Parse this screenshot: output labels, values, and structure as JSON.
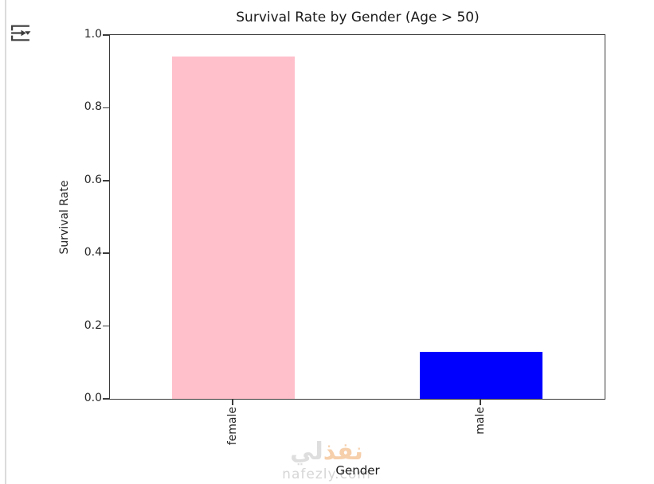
{
  "chart_data": {
    "type": "bar",
    "title": "Survival Rate by Gender (Age > 50)",
    "xlabel": "Gender",
    "ylabel": "Survival Rate",
    "categories": [
      "female",
      "male"
    ],
    "values": [
      0.94,
      0.13
    ],
    "bar_colors": [
      "#ffc0cb",
      "#0000ff"
    ],
    "ylim": [
      0,
      1.0
    ],
    "yticks": [
      "0.0",
      "0.2",
      "0.4",
      "0.6",
      "0.8",
      "1.0"
    ],
    "xtick_rotation": 90,
    "grid": false,
    "legend": false,
    "spine_color": "#3a3a3a"
  },
  "watermark": {
    "arabic_orange": "نفذ",
    "arabic_gray": "لي",
    "domain": "nafezly.com",
    "orange_color": "#f0a868",
    "gray_color": "#c4c4c4"
  }
}
